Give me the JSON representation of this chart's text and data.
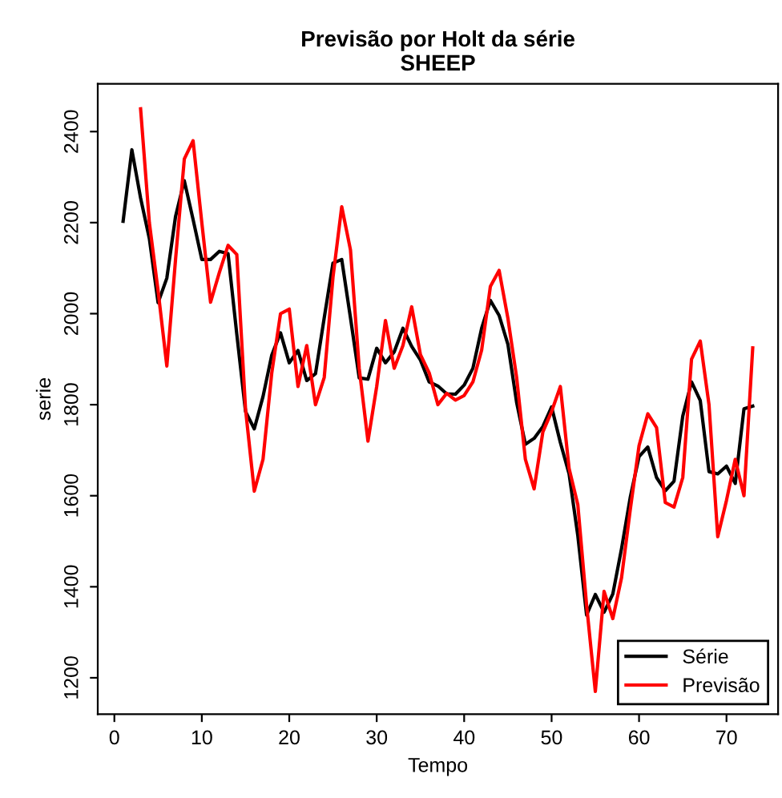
{
  "chart_data": {
    "type": "line",
    "title": "Previsão por Holt da série\nSHEEP",
    "xlabel": "Tempo",
    "ylabel": "serie",
    "xlim": [
      -1.9,
      75.9
    ],
    "ylim": [
      1120,
      2505
    ],
    "xticks": [
      0,
      10,
      20,
      30,
      40,
      50,
      60,
      70
    ],
    "yticks": [
      1200,
      1400,
      1600,
      1800,
      2000,
      2200,
      2400
    ],
    "grid": false,
    "legend": "bottom right",
    "line_style": "solid",
    "marker": "none",
    "series": [
      {
        "name": "Série",
        "color": "#000000",
        "x": [
          1,
          2,
          3,
          4,
          5,
          6,
          7,
          8,
          9,
          10,
          11,
          12,
          13,
          14,
          15,
          16,
          17,
          18,
          19,
          20,
          21,
          22,
          23,
          24,
          25,
          26,
          27,
          28,
          29,
          30,
          31,
          32,
          33,
          34,
          35,
          36,
          37,
          38,
          39,
          40,
          41,
          42,
          43,
          44,
          45,
          46,
          47,
          48,
          49,
          50,
          51,
          52,
          53,
          54,
          55,
          56,
          57,
          58,
          59,
          60,
          61,
          62,
          63,
          64,
          65,
          66,
          67,
          68,
          69,
          70,
          71,
          72,
          73
        ],
        "values": [
          2203,
          2360,
          2254,
          2165,
          2024,
          2078,
          2214,
          2292,
          2207,
          2119,
          2119,
          2137,
          2132,
          1955,
          1785,
          1747,
          1818,
          1909,
          1958,
          1892,
          1919,
          1853,
          1868,
          1991,
          2111,
          2119,
          1991,
          1859,
          1856,
          1924,
          1892,
          1916,
          1968,
          1928,
          1898,
          1850,
          1841,
          1824,
          1823,
          1843,
          1880,
          1968,
          2029,
          1996,
          1933,
          1805,
          1713,
          1726,
          1752,
          1795,
          1717,
          1648,
          1512,
          1338,
          1383,
          1344,
          1384,
          1484,
          1597,
          1686,
          1707,
          1640,
          1611,
          1632,
          1775,
          1850,
          1809,
          1653,
          1648,
          1665,
          1627,
          1791,
          1797
        ]
      },
      {
        "name": "Previsão",
        "color": "#ff0000",
        "x": [
          3,
          4,
          5,
          6,
          7,
          8,
          9,
          10,
          11,
          12,
          13,
          14,
          15,
          16,
          17,
          18,
          19,
          20,
          21,
          22,
          23,
          24,
          25,
          26,
          27,
          28,
          29,
          30,
          31,
          32,
          33,
          34,
          35,
          36,
          37,
          38,
          39,
          40,
          41,
          42,
          43,
          44,
          45,
          46,
          47,
          48,
          49,
          50,
          51,
          52,
          53,
          54,
          55,
          56,
          57,
          58,
          59,
          60,
          61,
          62,
          63,
          64,
          65,
          66,
          67,
          68,
          69,
          70,
          71,
          72,
          73
        ],
        "values": [
          2450,
          2200,
          2050,
          1885,
          2120,
          2340,
          2380,
          2200,
          2025,
          2090,
          2150,
          2130,
          1790,
          1610,
          1680,
          1870,
          2000,
          2010,
          1840,
          1930,
          1800,
          1860,
          2080,
          2235,
          2140,
          1880,
          1720,
          1840,
          1985,
          1880,
          1930,
          2015,
          1910,
          1870,
          1800,
          1825,
          1810,
          1820,
          1850,
          1920,
          2060,
          2095,
          1990,
          1860,
          1680,
          1615,
          1740,
          1785,
          1840,
          1660,
          1580,
          1360,
          1170,
          1390,
          1330,
          1420,
          1570,
          1710,
          1780,
          1750,
          1585,
          1575,
          1640,
          1900,
          1940,
          1800,
          1510,
          1590,
          1680,
          1600,
          1925
        ]
      }
    ]
  }
}
